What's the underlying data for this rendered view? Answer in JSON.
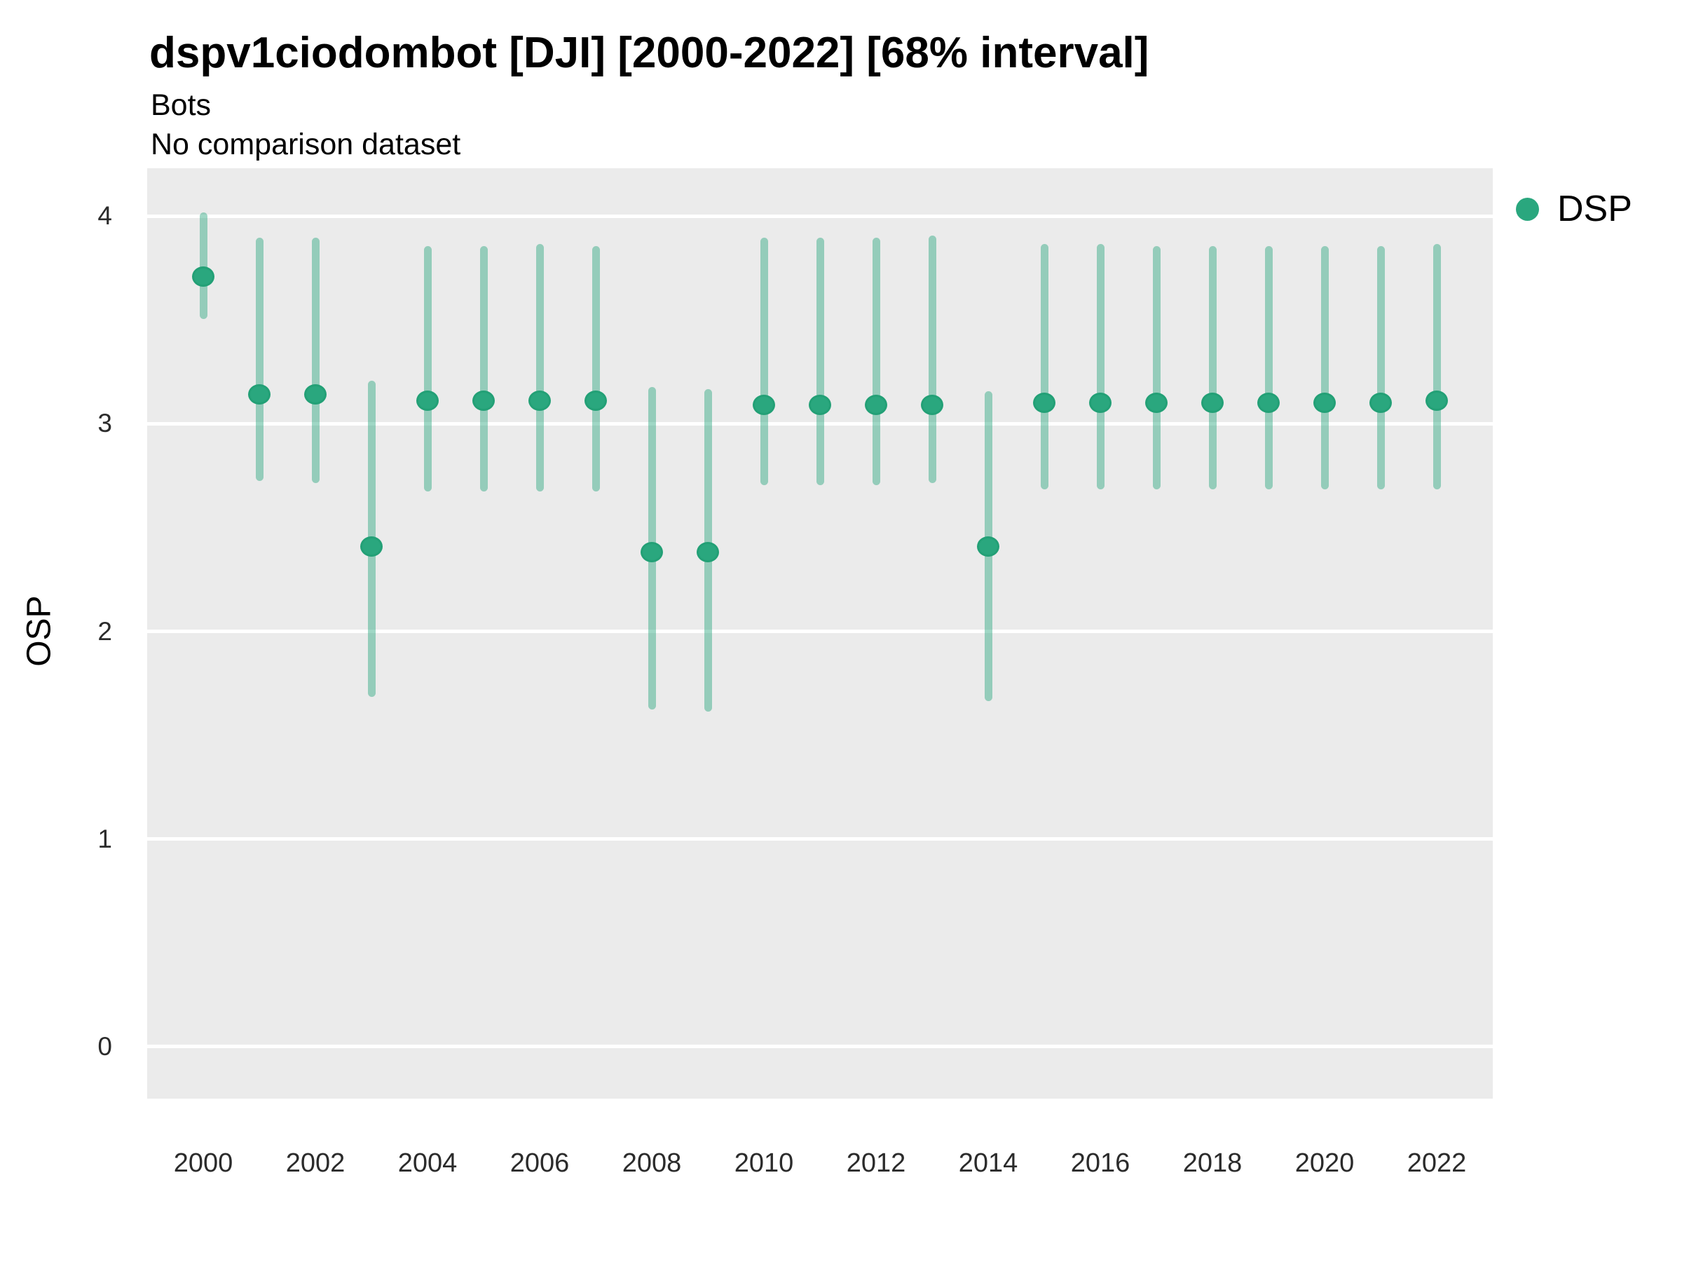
{
  "chart_data": {
    "type": "scatter",
    "title": "dspv1ciodombot [DJI] [2000-2022] [68% interval]",
    "subtitle": "Bots",
    "note": "No comparison dataset",
    "xlabel": "",
    "ylabel": "OSP",
    "interval": "68%",
    "legend": {
      "label": "DSP",
      "position": "right"
    },
    "grid": "major-horizontal",
    "panel_bg": "#ebebeb",
    "gridline_color": "#ffffff",
    "point_color": "#2aa77e",
    "point_edge_color": "#23a076",
    "interval_color": "rgba(42,167,126,0.45)",
    "xlim": [
      1999,
      2023
    ],
    "ylim": [
      -0.25,
      4.23
    ],
    "xticks": [
      2000,
      2002,
      2004,
      2006,
      2008,
      2010,
      2012,
      2014,
      2016,
      2018,
      2020,
      2022
    ],
    "yticks": [
      0,
      1,
      2,
      3,
      4
    ],
    "series": [
      {
        "name": "DSP",
        "points": [
          {
            "year": 2000,
            "mid": 3.71,
            "lo": 3.52,
            "hi": 4.0
          },
          {
            "year": 2001,
            "mid": 3.14,
            "lo": 2.74,
            "hi": 3.88
          },
          {
            "year": 2002,
            "mid": 3.14,
            "lo": 2.73,
            "hi": 3.88
          },
          {
            "year": 2003,
            "mid": 2.41,
            "lo": 1.7,
            "hi": 3.19
          },
          {
            "year": 2004,
            "mid": 3.11,
            "lo": 2.69,
            "hi": 3.84
          },
          {
            "year": 2005,
            "mid": 3.11,
            "lo": 2.69,
            "hi": 3.84
          },
          {
            "year": 2006,
            "mid": 3.11,
            "lo": 2.69,
            "hi": 3.85
          },
          {
            "year": 2007,
            "mid": 3.11,
            "lo": 2.69,
            "hi": 3.84
          },
          {
            "year": 2008,
            "mid": 2.38,
            "lo": 1.64,
            "hi": 3.16
          },
          {
            "year": 2009,
            "mid": 2.38,
            "lo": 1.63,
            "hi": 3.15
          },
          {
            "year": 2010,
            "mid": 3.09,
            "lo": 2.72,
            "hi": 3.88
          },
          {
            "year": 2011,
            "mid": 3.09,
            "lo": 2.72,
            "hi": 3.88
          },
          {
            "year": 2012,
            "mid": 3.09,
            "lo": 2.72,
            "hi": 3.88
          },
          {
            "year": 2013,
            "mid": 3.09,
            "lo": 2.73,
            "hi": 3.89
          },
          {
            "year": 2014,
            "mid": 2.41,
            "lo": 1.68,
            "hi": 3.14
          },
          {
            "year": 2015,
            "mid": 3.1,
            "lo": 2.7,
            "hi": 3.85
          },
          {
            "year": 2016,
            "mid": 3.1,
            "lo": 2.7,
            "hi": 3.85
          },
          {
            "year": 2017,
            "mid": 3.1,
            "lo": 2.7,
            "hi": 3.84
          },
          {
            "year": 2018,
            "mid": 3.1,
            "lo": 2.7,
            "hi": 3.84
          },
          {
            "year": 2019,
            "mid": 3.1,
            "lo": 2.7,
            "hi": 3.84
          },
          {
            "year": 2020,
            "mid": 3.1,
            "lo": 2.7,
            "hi": 3.84
          },
          {
            "year": 2021,
            "mid": 3.1,
            "lo": 2.7,
            "hi": 3.84
          },
          {
            "year": 2022,
            "mid": 3.11,
            "lo": 2.7,
            "hi": 3.85
          }
        ]
      }
    ]
  }
}
